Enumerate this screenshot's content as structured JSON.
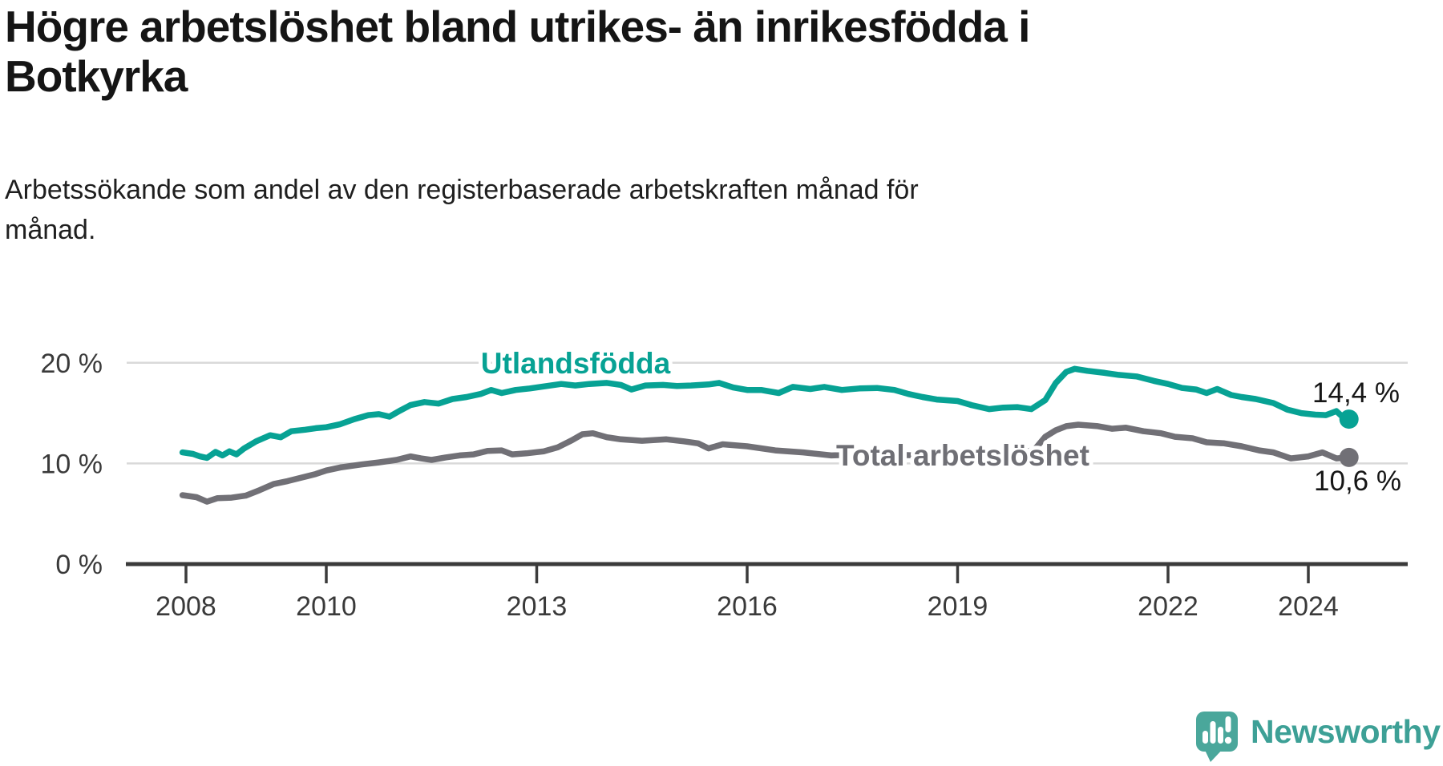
{
  "header": {
    "title_line1": "Högre arbetslöshet bland utrikes- än inrikesfödda i",
    "title_line2": "Botkyrka",
    "subtitle_line1": "Arbetssökande som andel av den registerbaserade arbetskraften månad för",
    "subtitle_line2": "månad."
  },
  "footer": {
    "brand": "Newsworthy",
    "logo_icon": "speech-bubble-bar-chart-exclamation",
    "brand_color": "#3da096",
    "logo_fill": "#4aa79b"
  },
  "chart_data": {
    "type": "line",
    "title": "Högre arbetslöshet bland utrikes- än inrikesfödda i Botkyrka",
    "subtitle": "Arbetssökande som andel av den registerbaserade arbetskraften månad för månad.",
    "grid": "horizontal-only",
    "legend_position": "inline-labels-on-lines",
    "x_axis": {
      "range": [
        2007.9,
        2025.4
      ],
      "ticks": [
        {
          "value": 2008,
          "label": "2008"
        },
        {
          "value": 2010,
          "label": "2010"
        },
        {
          "value": 2013,
          "label": "2013"
        },
        {
          "value": 2016,
          "label": "2016"
        },
        {
          "value": 2019,
          "label": "2019"
        },
        {
          "value": 2022,
          "label": "2022"
        },
        {
          "value": 2024,
          "label": "2024"
        }
      ]
    },
    "y_axis": {
      "range": [
        0,
        22.6
      ],
      "unit": "%",
      "ticks": [
        {
          "value": 0,
          "label": "0 %"
        },
        {
          "value": 10,
          "label": "10 %"
        },
        {
          "value": 20,
          "label": "20 %"
        }
      ]
    },
    "series": [
      {
        "name": "Utlandsfödda",
        "color": "#07a294",
        "end_label": "14,4 %",
        "end_value": 14.4,
        "points": [
          [
            2007.95,
            11.1
          ],
          [
            2008.1,
            10.95
          ],
          [
            2008.2,
            10.7
          ],
          [
            2008.3,
            10.55
          ],
          [
            2008.42,
            11.15
          ],
          [
            2008.52,
            10.8
          ],
          [
            2008.62,
            11.2
          ],
          [
            2008.72,
            10.9
          ],
          [
            2008.83,
            11.5
          ],
          [
            2009.0,
            12.2
          ],
          [
            2009.2,
            12.8
          ],
          [
            2009.35,
            12.6
          ],
          [
            2009.5,
            13.2
          ],
          [
            2009.7,
            13.35
          ],
          [
            2009.85,
            13.5
          ],
          [
            2010.0,
            13.6
          ],
          [
            2010.2,
            13.9
          ],
          [
            2010.4,
            14.4
          ],
          [
            2010.6,
            14.8
          ],
          [
            2010.75,
            14.9
          ],
          [
            2010.9,
            14.65
          ],
          [
            2011.05,
            15.25
          ],
          [
            2011.2,
            15.8
          ],
          [
            2011.4,
            16.1
          ],
          [
            2011.6,
            15.95
          ],
          [
            2011.8,
            16.4
          ],
          [
            2012.0,
            16.6
          ],
          [
            2012.2,
            16.9
          ],
          [
            2012.35,
            17.3
          ],
          [
            2012.5,
            17.0
          ],
          [
            2012.7,
            17.3
          ],
          [
            2012.9,
            17.45
          ],
          [
            2013.1,
            17.65
          ],
          [
            2013.35,
            17.9
          ],
          [
            2013.55,
            17.75
          ],
          [
            2013.75,
            17.9
          ],
          [
            2014.0,
            18.0
          ],
          [
            2014.2,
            17.8
          ],
          [
            2014.35,
            17.35
          ],
          [
            2014.55,
            17.75
          ],
          [
            2014.8,
            17.8
          ],
          [
            2015.0,
            17.7
          ],
          [
            2015.2,
            17.75
          ],
          [
            2015.45,
            17.85
          ],
          [
            2015.6,
            18.0
          ],
          [
            2015.8,
            17.55
          ],
          [
            2016.0,
            17.3
          ],
          [
            2016.2,
            17.3
          ],
          [
            2016.45,
            17.0
          ],
          [
            2016.65,
            17.6
          ],
          [
            2016.9,
            17.4
          ],
          [
            2017.1,
            17.6
          ],
          [
            2017.35,
            17.3
          ],
          [
            2017.6,
            17.45
          ],
          [
            2017.85,
            17.5
          ],
          [
            2018.1,
            17.3
          ],
          [
            2018.3,
            16.9
          ],
          [
            2018.5,
            16.6
          ],
          [
            2018.7,
            16.35
          ],
          [
            2019.0,
            16.2
          ],
          [
            2019.2,
            15.8
          ],
          [
            2019.45,
            15.4
          ],
          [
            2019.65,
            15.55
          ],
          [
            2019.85,
            15.6
          ],
          [
            2020.05,
            15.4
          ],
          [
            2020.25,
            16.3
          ],
          [
            2020.4,
            18.0
          ],
          [
            2020.55,
            19.1
          ],
          [
            2020.67,
            19.4
          ],
          [
            2020.85,
            19.2
          ],
          [
            2021.1,
            19.0
          ],
          [
            2021.3,
            18.8
          ],
          [
            2021.55,
            18.65
          ],
          [
            2021.8,
            18.2
          ],
          [
            2022.0,
            17.9
          ],
          [
            2022.2,
            17.5
          ],
          [
            2022.4,
            17.35
          ],
          [
            2022.55,
            17.0
          ],
          [
            2022.7,
            17.4
          ],
          [
            2022.9,
            16.8
          ],
          [
            2023.05,
            16.6
          ],
          [
            2023.25,
            16.4
          ],
          [
            2023.5,
            16.0
          ],
          [
            2023.7,
            15.35
          ],
          [
            2023.9,
            15.0
          ],
          [
            2024.1,
            14.85
          ],
          [
            2024.25,
            14.8
          ],
          [
            2024.4,
            15.2
          ],
          [
            2024.5,
            14.55
          ],
          [
            2024.58,
            14.4
          ]
        ]
      },
      {
        "name": "Total arbetslöshet",
        "color": "#717076",
        "end_label": "10,6 %",
        "end_value": 10.6,
        "points": [
          [
            2007.95,
            6.85
          ],
          [
            2008.15,
            6.65
          ],
          [
            2008.3,
            6.2
          ],
          [
            2008.45,
            6.55
          ],
          [
            2008.65,
            6.6
          ],
          [
            2008.85,
            6.8
          ],
          [
            2009.05,
            7.35
          ],
          [
            2009.25,
            7.95
          ],
          [
            2009.45,
            8.25
          ],
          [
            2009.65,
            8.6
          ],
          [
            2009.85,
            8.95
          ],
          [
            2010.0,
            9.3
          ],
          [
            2010.2,
            9.6
          ],
          [
            2010.5,
            9.9
          ],
          [
            2010.75,
            10.1
          ],
          [
            2011.0,
            10.35
          ],
          [
            2011.2,
            10.7
          ],
          [
            2011.35,
            10.5
          ],
          [
            2011.5,
            10.35
          ],
          [
            2011.7,
            10.6
          ],
          [
            2011.9,
            10.8
          ],
          [
            2012.1,
            10.9
          ],
          [
            2012.3,
            11.25
          ],
          [
            2012.5,
            11.3
          ],
          [
            2012.65,
            10.9
          ],
          [
            2012.85,
            11.0
          ],
          [
            2013.1,
            11.2
          ],
          [
            2013.3,
            11.6
          ],
          [
            2013.5,
            12.3
          ],
          [
            2013.65,
            12.9
          ],
          [
            2013.8,
            13.0
          ],
          [
            2014.0,
            12.6
          ],
          [
            2014.2,
            12.4
          ],
          [
            2014.5,
            12.25
          ],
          [
            2014.85,
            12.4
          ],
          [
            2015.1,
            12.2
          ],
          [
            2015.3,
            12.0
          ],
          [
            2015.45,
            11.5
          ],
          [
            2015.65,
            11.9
          ],
          [
            2016.0,
            11.7
          ],
          [
            2016.4,
            11.3
          ],
          [
            2016.8,
            11.1
          ],
          [
            2017.2,
            10.8
          ],
          [
            2017.6,
            10.9
          ],
          [
            2018.0,
            10.9
          ],
          [
            2018.4,
            10.8
          ],
          [
            2018.8,
            10.7
          ],
          [
            2019.2,
            10.7
          ],
          [
            2019.6,
            10.8
          ],
          [
            2019.9,
            11.0
          ],
          [
            2020.1,
            11.4
          ],
          [
            2020.25,
            12.65
          ],
          [
            2020.4,
            13.3
          ],
          [
            2020.55,
            13.7
          ],
          [
            2020.72,
            13.85
          ],
          [
            2021.0,
            13.7
          ],
          [
            2021.2,
            13.45
          ],
          [
            2021.4,
            13.55
          ],
          [
            2021.65,
            13.2
          ],
          [
            2021.9,
            13.0
          ],
          [
            2022.1,
            12.65
          ],
          [
            2022.35,
            12.5
          ],
          [
            2022.55,
            12.1
          ],
          [
            2022.8,
            12.0
          ],
          [
            2023.05,
            11.7
          ],
          [
            2023.3,
            11.3
          ],
          [
            2023.5,
            11.1
          ],
          [
            2023.75,
            10.5
          ],
          [
            2024.0,
            10.7
          ],
          [
            2024.2,
            11.1
          ],
          [
            2024.4,
            10.5
          ],
          [
            2024.58,
            10.6
          ]
        ]
      }
    ]
  }
}
